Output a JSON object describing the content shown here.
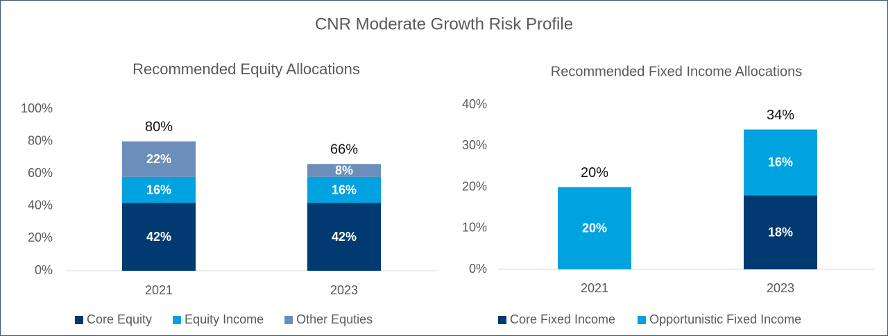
{
  "title": "CNR Moderate Growth Risk Profile",
  "chart_data": [
    {
      "type": "stacked_bar",
      "title": "Recommended Equity Allocations",
      "categories": [
        "2021",
        "2023"
      ],
      "series": [
        {
          "name": "Core Equity",
          "color": "#003a70",
          "values": [
            42,
            42
          ],
          "value_labels": [
            "42%",
            "42%"
          ]
        },
        {
          "name": "Equity Income",
          "color": "#00a3e0",
          "values": [
            16,
            16
          ],
          "value_labels": [
            "16%",
            "16%"
          ]
        },
        {
          "name": "Other Equties",
          "color": "#6b8fba",
          "values": [
            22,
            8
          ],
          "value_labels": [
            "22%",
            "8%"
          ]
        }
      ],
      "totals": [
        80,
        66
      ],
      "total_labels": [
        "80%",
        "66%"
      ],
      "ylim": [
        0,
        100
      ],
      "yticks": [
        {
          "value": 0,
          "label": "0%"
        },
        {
          "value": 20,
          "label": "20%"
        },
        {
          "value": 40,
          "label": "40%"
        },
        {
          "value": 60,
          "label": "60%"
        },
        {
          "value": 80,
          "label": "80%"
        },
        {
          "value": 100,
          "label": "100%"
        }
      ]
    },
    {
      "type": "stacked_bar",
      "title": "Recommended Fixed Income Allocations",
      "categories": [
        "2021",
        "2023"
      ],
      "series": [
        {
          "name": "Core Fixed Income",
          "color": "#003a70",
          "values": [
            null,
            18
          ],
          "value_labels": [
            null,
            "18%"
          ]
        },
        {
          "name": "Opportunistic Fixed Income",
          "color": "#00a3e0",
          "values": [
            20,
            16
          ],
          "value_labels": [
            "20%",
            "16%"
          ]
        }
      ],
      "totals": [
        20,
        34
      ],
      "total_labels": [
        "20%",
        "34%"
      ],
      "ylim": [
        0,
        40
      ],
      "yticks": [
        {
          "value": 0,
          "label": "0%"
        },
        {
          "value": 10,
          "label": "10%"
        },
        {
          "value": 20,
          "label": "20%"
        },
        {
          "value": 30,
          "label": "30%"
        },
        {
          "value": 40,
          "label": "40%"
        }
      ]
    }
  ]
}
